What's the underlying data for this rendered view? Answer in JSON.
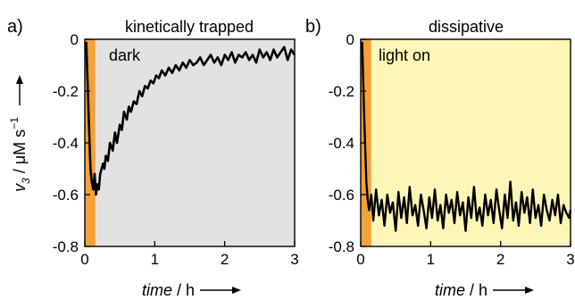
{
  "chart_data": [
    {
      "type": "line",
      "panel_label": "a)",
      "title": "kinetically trapped",
      "annotation": "dark",
      "background_color": "#e2e2e2",
      "highlight_color": "#f4a13a",
      "highlight_x": [
        0,
        0.15
      ],
      "xlabel_italic": "time",
      "xlabel_unit": " / h",
      "ylabel_var": "v",
      "ylabel_sub": "3",
      "ylabel_unit": " / μM s",
      "ylabel_sup": "−1",
      "xlim": [
        0,
        3
      ],
      "ylim": [
        -0.8,
        0
      ],
      "xticks": [
        "0",
        "1",
        "2",
        "3"
      ],
      "yticks": [
        "0",
        "-0.2",
        "-0.4",
        "-0.6",
        "-0.8"
      ],
      "series": [
        {
          "color": "#000000",
          "x": [
            0.02,
            0.05,
            0.08,
            0.1,
            0.12,
            0.14,
            0.16,
            0.18,
            0.2,
            0.22,
            0.24,
            0.26,
            0.28,
            0.3,
            0.33,
            0.36,
            0.4,
            0.43,
            0.46,
            0.5,
            0.53,
            0.56,
            0.6,
            0.63,
            0.66,
            0.7,
            0.74,
            0.78,
            0.82,
            0.86,
            0.9,
            0.94,
            0.98,
            1.02,
            1.06,
            1.1,
            1.15,
            1.2,
            1.25,
            1.3,
            1.35,
            1.4,
            1.45,
            1.5,
            1.55,
            1.6,
            1.65,
            1.7,
            1.75,
            1.8,
            1.85,
            1.9,
            1.95,
            2.0,
            2.05,
            2.1,
            2.15,
            2.2,
            2.25,
            2.3,
            2.35,
            2.4,
            2.45,
            2.5,
            2.55,
            2.6,
            2.65,
            2.7,
            2.75,
            2.8,
            2.85,
            2.9,
            2.95,
            3.0
          ],
          "y": [
            -0.01,
            -0.25,
            -0.5,
            -0.55,
            -0.58,
            -0.52,
            -0.6,
            -0.56,
            -0.58,
            -0.52,
            -0.5,
            -0.48,
            -0.5,
            -0.45,
            -0.47,
            -0.4,
            -0.43,
            -0.36,
            -0.4,
            -0.33,
            -0.35,
            -0.28,
            -0.31,
            -0.26,
            -0.28,
            -0.24,
            -0.25,
            -0.2,
            -0.22,
            -0.18,
            -0.19,
            -0.16,
            -0.17,
            -0.14,
            -0.15,
            -0.12,
            -0.14,
            -0.11,
            -0.13,
            -0.1,
            -0.12,
            -0.09,
            -0.11,
            -0.08,
            -0.1,
            -0.09,
            -0.07,
            -0.1,
            -0.08,
            -0.06,
            -0.09,
            -0.07,
            -0.1,
            -0.06,
            -0.08,
            -0.05,
            -0.09,
            -0.06,
            -0.07,
            -0.05,
            -0.08,
            -0.06,
            -0.09,
            -0.04,
            -0.07,
            -0.05,
            -0.08,
            -0.04,
            -0.07,
            -0.05,
            -0.03,
            -0.08,
            -0.04,
            -0.06
          ]
        }
      ]
    },
    {
      "type": "line",
      "panel_label": "b)",
      "title": "dissipative",
      "annotation": "light on",
      "background_color": "#fdf6b6",
      "highlight_color": "#f4a13a",
      "highlight_x": [
        0,
        0.15
      ],
      "xlabel_italic": "time",
      "xlabel_unit": " / h",
      "xlim": [
        0,
        3
      ],
      "ylim": [
        -0.8,
        0
      ],
      "xticks": [
        "0",
        "1",
        "2",
        "3"
      ],
      "yticks": [
        "0",
        "-0.2",
        "-0.4",
        "-0.6",
        "-0.8"
      ],
      "series": [
        {
          "color": "#000000",
          "x": [
            0.02,
            0.05,
            0.08,
            0.1,
            0.12,
            0.15,
            0.18,
            0.22,
            0.26,
            0.3,
            0.34,
            0.38,
            0.42,
            0.46,
            0.5,
            0.54,
            0.58,
            0.62,
            0.66,
            0.7,
            0.74,
            0.78,
            0.82,
            0.86,
            0.9,
            0.94,
            0.98,
            1.02,
            1.06,
            1.1,
            1.14,
            1.18,
            1.22,
            1.26,
            1.3,
            1.34,
            1.38,
            1.42,
            1.46,
            1.5,
            1.54,
            1.58,
            1.62,
            1.66,
            1.7,
            1.74,
            1.78,
            1.82,
            1.86,
            1.9,
            1.94,
            1.98,
            2.02,
            2.06,
            2.1,
            2.14,
            2.18,
            2.22,
            2.26,
            2.3,
            2.34,
            2.38,
            2.42,
            2.46,
            2.5,
            2.54,
            2.58,
            2.62,
            2.66,
            2.7,
            2.74,
            2.78,
            2.82,
            2.86,
            2.9,
            2.94,
            2.98,
            3.0
          ],
          "y": [
            -0.01,
            -0.3,
            -0.55,
            -0.62,
            -0.66,
            -0.6,
            -0.7,
            -0.58,
            -0.68,
            -0.62,
            -0.72,
            -0.6,
            -0.67,
            -0.63,
            -0.74,
            -0.59,
            -0.69,
            -0.61,
            -0.71,
            -0.57,
            -0.68,
            -0.64,
            -0.72,
            -0.6,
            -0.66,
            -0.73,
            -0.61,
            -0.69,
            -0.58,
            -0.7,
            -0.64,
            -0.73,
            -0.6,
            -0.67,
            -0.62,
            -0.71,
            -0.59,
            -0.68,
            -0.63,
            -0.74,
            -0.61,
            -0.69,
            -0.57,
            -0.7,
            -0.65,
            -0.72,
            -0.6,
            -0.68,
            -0.62,
            -0.71,
            -0.58,
            -0.66,
            -0.73,
            -0.6,
            -0.69,
            -0.55,
            -0.7,
            -0.63,
            -0.72,
            -0.59,
            -0.67,
            -0.61,
            -0.71,
            -0.58,
            -0.69,
            -0.64,
            -0.72,
            -0.6,
            -0.66,
            -0.7,
            -0.62,
            -0.68,
            -0.6,
            -0.71,
            -0.64,
            -0.67,
            -0.69,
            -0.66
          ]
        }
      ]
    }
  ]
}
